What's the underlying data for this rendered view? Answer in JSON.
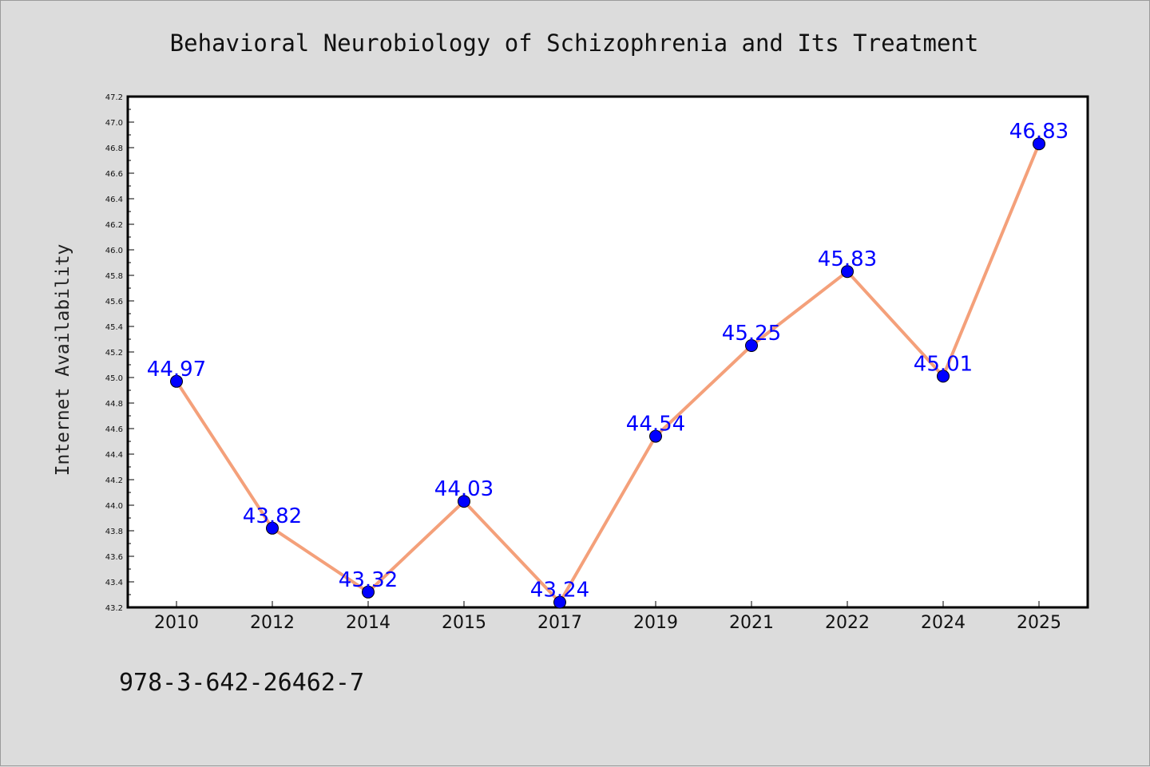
{
  "chart_data": {
    "type": "line",
    "title": "Behavioral Neurobiology of Schizophrenia and Its Treatment",
    "xlabel": "",
    "ylabel": "Internet Availability",
    "categories": [
      "2010",
      "2012",
      "2014",
      "2015",
      "2017",
      "2019",
      "2021",
      "2022",
      "2024",
      "2025"
    ],
    "series": [
      {
        "values": [
          44.97,
          43.82,
          43.32,
          44.03,
          43.24,
          44.54,
          45.25,
          45.83,
          45.01,
          46.83
        ]
      }
    ],
    "data_labels": [
      "44.97",
      "43.82",
      "43.32",
      "44.03",
      "43.24",
      "44.54",
      "45.25",
      "45.83",
      "45.01",
      "46.83"
    ],
    "ylim": [
      43.2,
      47.2
    ],
    "yticks": [
      "43.2",
      "43.4",
      "43.6",
      "43.8",
      "44.0",
      "44.2",
      "44.4",
      "44.6",
      "44.8",
      "45.0",
      "45.2",
      "45.4",
      "45.6",
      "45.8",
      "46.0",
      "46.2",
      "46.4",
      "46.6",
      "46.8",
      "47.0",
      "47.2"
    ],
    "grid": false,
    "colors": {
      "line": "#f4a07a",
      "marker": "#0000ff",
      "label": "#0000ff",
      "background": "#dcdcdc",
      "plot_background": "#ffffff"
    }
  },
  "footer": {
    "isbn": "978-3-642-26462-7"
  }
}
